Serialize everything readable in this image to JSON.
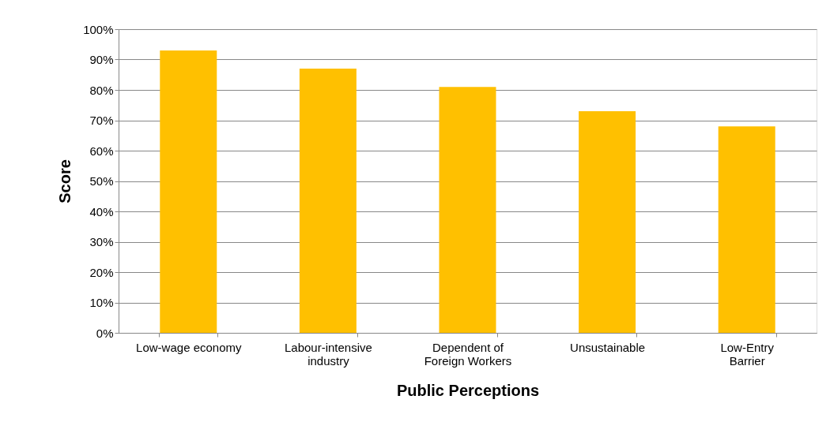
{
  "chart_data": {
    "type": "bar",
    "xlabel": "Public Perceptions",
    "ylabel": "Score",
    "categories": [
      "Low-wage economy",
      "Labour-intensive industry",
      "Dependent of Foreign Workers",
      "Unsustainable",
      "Low-Entry Barrier"
    ],
    "values": [
      93,
      87,
      81,
      73,
      68
    ],
    "color": "#ffc000",
    "ylim": [
      0,
      100
    ],
    "yticks": [
      {
        "value": 0,
        "label": "0%"
      },
      {
        "value": 10,
        "label": "10%"
      },
      {
        "value": 20,
        "label": "20%"
      },
      {
        "value": 30,
        "label": "30%"
      },
      {
        "value": 40,
        "label": "40%"
      },
      {
        "value": 50,
        "label": "50%"
      },
      {
        "value": 60,
        "label": "60%"
      },
      {
        "value": 70,
        "label": "70%"
      },
      {
        "value": 80,
        "label": "80%"
      },
      {
        "value": 90,
        "label": "90%"
      },
      {
        "value": 100,
        "label": "100%"
      }
    ],
    "grid": "y"
  }
}
